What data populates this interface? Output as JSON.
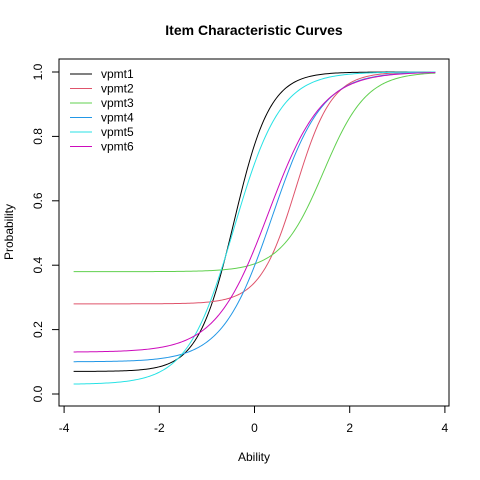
{
  "chart_data": {
    "type": "line",
    "title": "Item Characteristic Curves",
    "xlabel": "Ability",
    "ylabel": "Probability",
    "xlim": [
      -3.8,
      3.8
    ],
    "ylim": [
      0,
      1
    ],
    "x_ticks": [
      -4,
      -2,
      0,
      2,
      4
    ],
    "y_ticks": [
      0.0,
      0.2,
      0.4,
      0.6,
      0.8,
      1.0
    ],
    "x_tick_labels": [
      "-4",
      "-2",
      "0",
      "2",
      "4"
    ],
    "y_tick_labels": [
      "0.0",
      "0.2",
      "0.4",
      "0.6",
      "0.8",
      "1.0"
    ],
    "grid": false,
    "legend_position": "top-left",
    "series": [
      {
        "name": "vpmt1",
        "color": "#000000",
        "guessing": 0.07,
        "discrimination": 1.55,
        "difficulty": -0.43
      },
      {
        "name": "vpmt2",
        "color": "#DF536B",
        "guessing": 0.28,
        "discrimination": 1.55,
        "difficulty": 0.87
      },
      {
        "name": "vpmt3",
        "color": "#61D04F",
        "guessing": 0.38,
        "discrimination": 1.3,
        "difficulty": 1.45
      },
      {
        "name": "vpmt4",
        "color": "#2297E6",
        "guessing": 0.1,
        "discrimination": 1.12,
        "difficulty": 0.37
      },
      {
        "name": "vpmt5",
        "color": "#28E2E5",
        "guessing": 0.03,
        "discrimination": 1.2,
        "difficulty": -0.43
      },
      {
        "name": "vpmt6",
        "color": "#CD0BBC",
        "guessing": 0.13,
        "discrimination": 1.05,
        "difficulty": 0.3
      }
    ]
  }
}
